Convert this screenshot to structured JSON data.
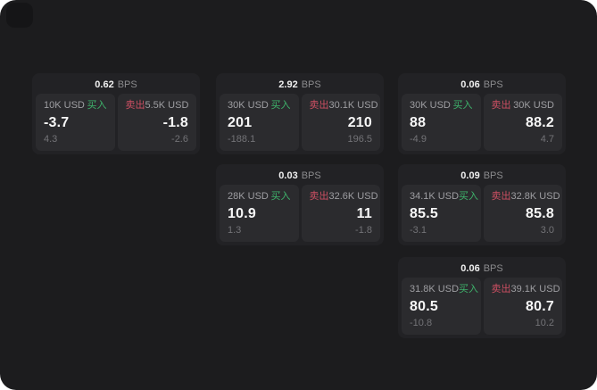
{
  "labels": {
    "bps_unit": "BPS",
    "buy": "买入",
    "sell": "卖出"
  },
  "colors": {
    "app_background": "#1c1c1e",
    "card_background": "#222225",
    "panel_background": "#2b2b2e",
    "buy_green": "#3eb36b",
    "sell_red": "#cc4f62",
    "price_text": "#f7f7f7",
    "muted_text": "#737377"
  },
  "cards": [
    {
      "bps": "0.62",
      "buy": {
        "amount": "10K USD",
        "price": "-3.7",
        "delta": "4.3"
      },
      "sell": {
        "amount": "5.5K USD",
        "price": "-1.8",
        "delta": "-2.6"
      }
    },
    {
      "bps": "2.92",
      "buy": {
        "amount": "30K USD",
        "price": "201",
        "delta": "-188.1"
      },
      "sell": {
        "amount": "30.1K USD",
        "price": "210",
        "delta": "196.5"
      }
    },
    {
      "bps": "0.06",
      "buy": {
        "amount": "30K USD",
        "price": "88",
        "delta": "-4.9"
      },
      "sell": {
        "amount": "30K USD",
        "price": "88.2",
        "delta": "4.7"
      }
    },
    {
      "bps": "0.03",
      "buy": {
        "amount": "28K USD",
        "price": "10.9",
        "delta": "1.3"
      },
      "sell": {
        "amount": "32.6K USD",
        "price": "11",
        "delta": "-1.8"
      }
    },
    {
      "bps": "0.09",
      "buy": {
        "amount": "34.1K USD",
        "price": "85.5",
        "delta": "-3.1"
      },
      "sell": {
        "amount": "32.8K USD",
        "price": "85.8",
        "delta": "3.0"
      }
    },
    {
      "bps": "0.06",
      "buy": {
        "amount": "31.8K USD",
        "price": "80.5",
        "delta": "-10.8"
      },
      "sell": {
        "amount": "39.1K USD",
        "price": "80.7",
        "delta": "10.2"
      }
    }
  ]
}
